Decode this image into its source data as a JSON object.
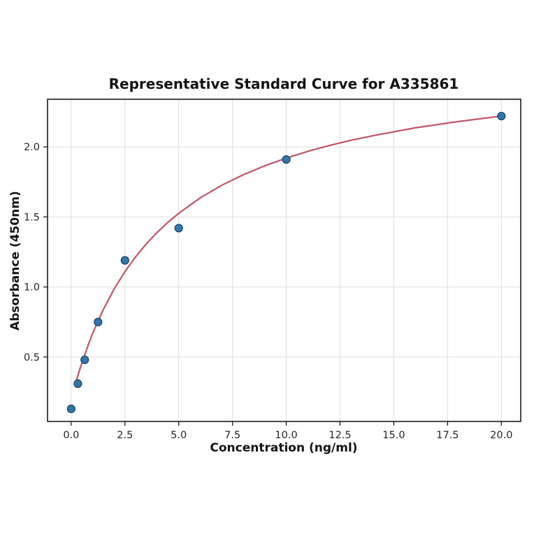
{
  "chart_data": {
    "type": "scatter",
    "title": "Representative Standard Curve for A335861",
    "xlabel": "Concentration (ng/ml)",
    "ylabel": "Absorbance (450nm)",
    "xlim": [
      -1.1,
      20.9
    ],
    "ylim": [
      0.04,
      2.34
    ],
    "x_ticks": [
      0.0,
      2.5,
      5.0,
      7.5,
      10.0,
      12.5,
      15.0,
      17.5,
      20.0
    ],
    "x_tick_labels": [
      "0.0",
      "2.5",
      "5.0",
      "7.5",
      "10.0",
      "12.5",
      "15.0",
      "17.5",
      "20.0"
    ],
    "y_ticks": [
      0.5,
      1.0,
      1.5,
      2.0
    ],
    "y_tick_labels": [
      "0.5",
      "1.0",
      "1.5",
      "2.0"
    ],
    "grid": true,
    "legend": "none",
    "points": {
      "name": "standards",
      "x": [
        0,
        0.31,
        0.63,
        1.25,
        2.5,
        5,
        10,
        20
      ],
      "y": [
        0.13,
        0.31,
        0.48,
        0.75,
        1.19,
        1.42,
        1.91,
        2.22
      ]
    },
    "fit_curve": {
      "name": "fitted standard curve",
      "x": [
        0.25,
        0.4,
        0.6,
        0.8,
        1.0,
        1.25,
        1.5,
        2.0,
        2.5,
        3.0,
        3.5,
        4.0,
        4.5,
        5.0,
        6.0,
        7.0,
        8.0,
        9.0,
        10.0,
        11.0,
        12.0,
        13.0,
        14.0,
        16.0,
        18.0,
        20.0
      ],
      "y": [
        0.337,
        0.412,
        0.504,
        0.59,
        0.669,
        0.759,
        0.841,
        0.987,
        1.11,
        1.216,
        1.309,
        1.39,
        1.462,
        1.526,
        1.636,
        1.726,
        1.801,
        1.865,
        1.92,
        1.968,
        2.01,
        2.047,
        2.079,
        2.136,
        2.181,
        2.22
      ]
    },
    "colors": {
      "point_fill": "#2f77ac",
      "point_edge": "#1c3d5c",
      "curve": "#c05566",
      "grid": "#dedede",
      "axis": "#1a1a1a",
      "text": "#141414"
    },
    "marker_radius": 5.5,
    "curve_width": 2.2
  }
}
